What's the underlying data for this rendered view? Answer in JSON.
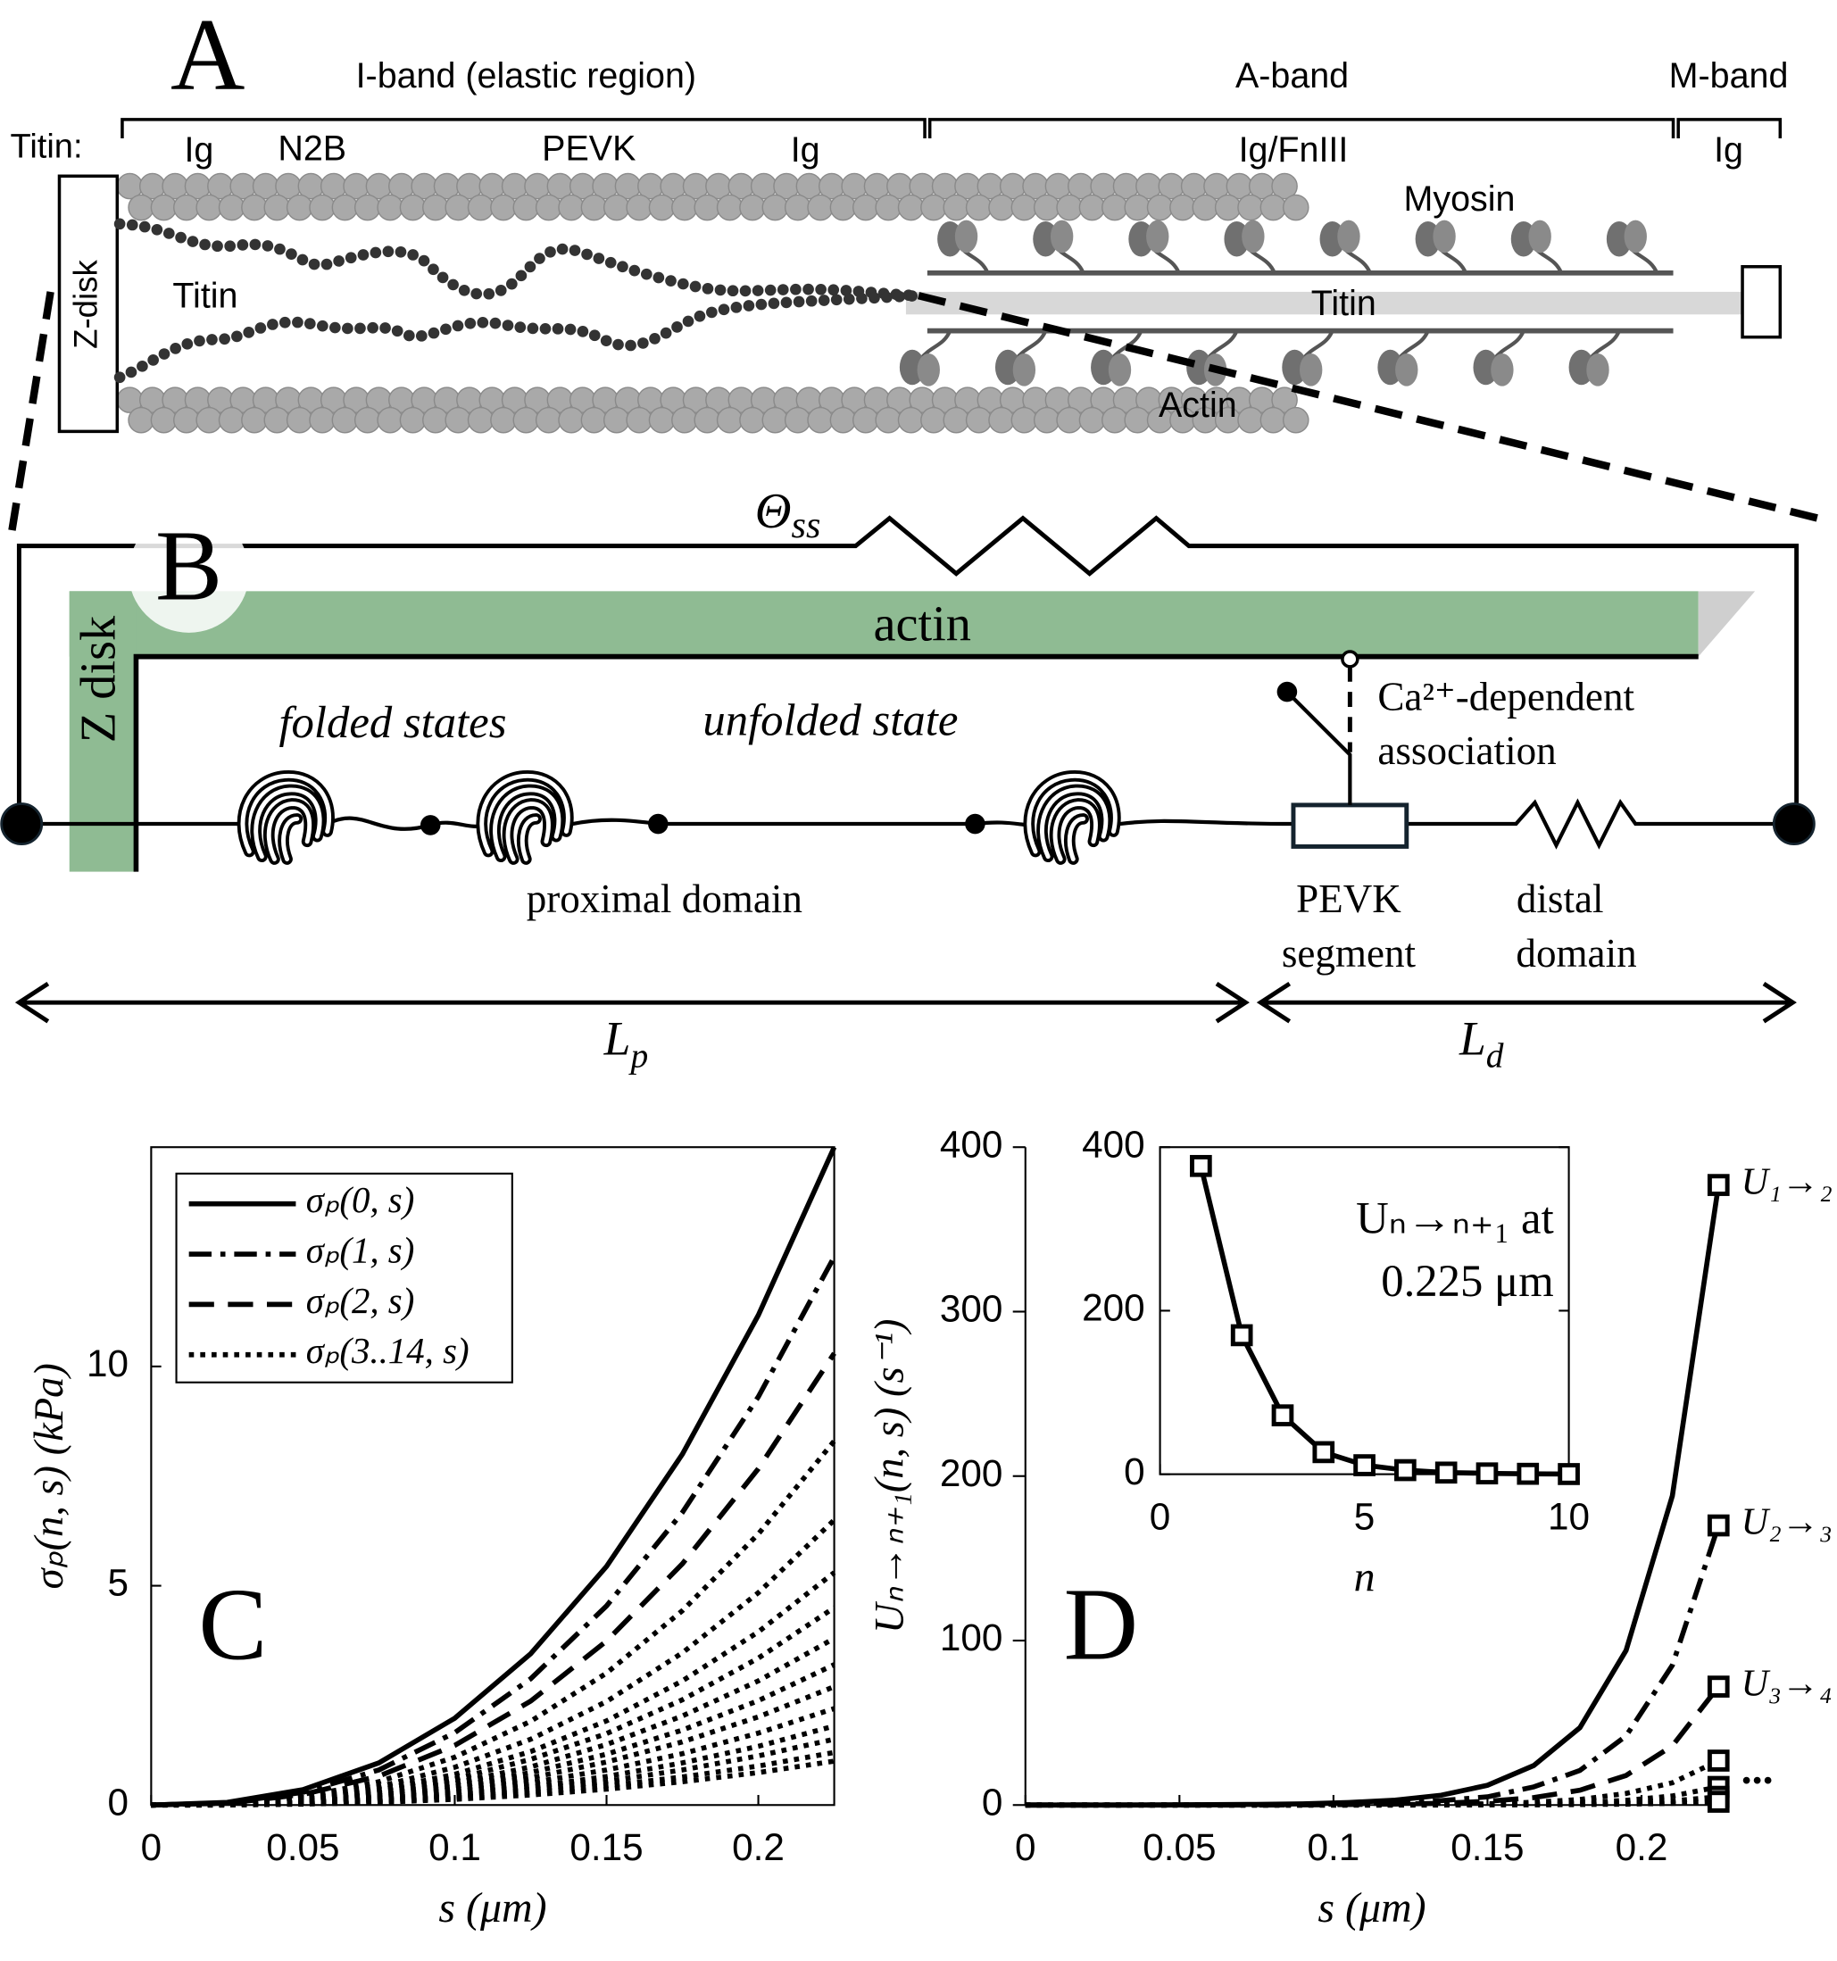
{
  "panel_a": {
    "label": "A",
    "bands": [
      "I-band (elastic region)",
      "A-band",
      "M-band"
    ],
    "titin_row": "Titin:",
    "segments": [
      "Ig",
      "N2B",
      "PEVK",
      "Ig",
      "Ig/FnIII",
      "Ig"
    ],
    "z_disk": "Z-disk",
    "titin": "Titin",
    "titin_a": "Titin",
    "myosin": "Myosin",
    "actin": "Actin"
  },
  "panel_b": {
    "label": "B",
    "theta": {
      "main": "Θ",
      "sub": "ss"
    },
    "actin": "actin",
    "z_disk": "Z disk",
    "folded": "folded states",
    "unfolded": "unfolded state",
    "proximal": "proximal domain",
    "pevk": [
      "PEVK",
      "segment"
    ],
    "distal": [
      "distal",
      "domain"
    ],
    "ca": [
      "Ca²⁺-dependent",
      "association"
    ],
    "lp": {
      "main": "L",
      "sub": "p"
    },
    "ld": {
      "main": "L",
      "sub": "d"
    }
  },
  "chart_data": [
    {
      "type": "line",
      "panel_label": "C",
      "xlabel": "s (μm)",
      "ylabel": "σₚ(n, s) (kPa)",
      "xlim": [
        0,
        0.225
      ],
      "ylim": [
        0,
        15
      ],
      "xticks": [
        0,
        0.05,
        0.1,
        0.15,
        0.2
      ],
      "yticks": [
        0,
        5,
        10
      ],
      "box": true,
      "legend": "upper left",
      "x": [
        0,
        0.025,
        0.05,
        0.075,
        0.1,
        0.125,
        0.15,
        0.175,
        0.2,
        0.225
      ],
      "series": [
        {
          "name": "σₚ(0, s)",
          "color": "#000000",
          "dash": "solid",
          "values": [
            0,
            0.06,
            0.35,
            0.96,
            1.98,
            3.45,
            5.44,
            8.0,
            11.17,
            15
          ]
        },
        {
          "name": "σₚ(1, s)",
          "color": "#000000",
          "dash": "dashdot",
          "values": [
            0,
            0.05,
            0.29,
            0.8,
            1.65,
            2.88,
            4.54,
            6.67,
            9.31,
            12.5
          ]
        },
        {
          "name": "σₚ(2, s)",
          "color": "#000000",
          "dash": "dashed",
          "values": [
            0,
            0.04,
            0.24,
            0.66,
            1.36,
            2.37,
            3.74,
            5.5,
            7.67,
            10.3
          ]
        },
        {
          "name": "σₚ(3..14, s)",
          "color": "#000000",
          "dash": "dotted",
          "curves": [
            [
              0,
              0.03,
              0.19,
              0.53,
              1.09,
              1.91,
              3.01,
              4.43,
              6.18,
              8.3
            ],
            [
              0,
              0.03,
              0.15,
              0.42,
              0.86,
              1.5,
              2.36,
              3.47,
              4.84,
              6.5
            ],
            [
              0,
              0.02,
              0.12,
              0.34,
              0.7,
              1.22,
              1.92,
              2.83,
              3.95,
              5.3
            ],
            [
              0,
              0.02,
              0.1,
              0.29,
              0.59,
              1.04,
              1.63,
              2.4,
              3.35,
              4.5
            ],
            [
              0,
              0.02,
              0.09,
              0.24,
              0.5,
              0.87,
              1.38,
              2.03,
              2.83,
              3.8
            ],
            [
              0,
              0.01,
              0.07,
              0.21,
              0.42,
              0.74,
              1.16,
              1.71,
              2.38,
              3.2
            ],
            [
              0,
              0.01,
              0.06,
              0.17,
              0.36,
              0.62,
              0.98,
              1.44,
              2.01,
              2.7
            ],
            [
              0,
              0.01,
              0.05,
              0.14,
              0.29,
              0.51,
              0.8,
              1.17,
              1.64,
              2.2
            ],
            [
              0,
              0.01,
              0.04,
              0.12,
              0.24,
              0.41,
              0.65,
              0.96,
              1.34,
              1.8
            ],
            [
              0,
              0.01,
              0.03,
              0.1,
              0.2,
              0.35,
              0.54,
              0.8,
              1.12,
              1.5
            ],
            [
              0,
              0,
              0.03,
              0.08,
              0.16,
              0.28,
              0.44,
              0.64,
              0.89,
              1.2
            ],
            [
              0,
              0,
              0.02,
              0.06,
              0.13,
              0.23,
              0.36,
              0.53,
              0.74,
              1.0
            ]
          ]
        }
      ]
    },
    {
      "type": "line",
      "panel_label": "D",
      "xlabel": "s (μm)",
      "ylabel": "Uₙ→ₙ₊₁(n, s) (s⁻¹)",
      "xlim": [
        0,
        0.225
      ],
      "ylim": [
        0,
        400
      ],
      "xticks": [
        0,
        0.05,
        0.1,
        0.15,
        0.2
      ],
      "yticks": [
        0,
        100,
        200,
        300,
        400
      ],
      "box": false,
      "marker": "square-end",
      "annotation": "...",
      "x": [
        0,
        0.015,
        0.03,
        0.045,
        0.06,
        0.075,
        0.09,
        0.105,
        0.12,
        0.135,
        0.15,
        0.165,
        0.18,
        0.195,
        0.21,
        0.225
      ],
      "series": [
        {
          "name": "U₁→₂",
          "color": "#000000",
          "dash": "solid",
          "values": [
            0,
            0,
            0,
            0.1,
            0.2,
            0.4,
            0.7,
            1.5,
            3,
            6,
            12,
            24,
            47,
            94,
            188,
            377
          ]
        },
        {
          "name": "U₂→₃",
          "color": "#000000",
          "dash": "dashdot",
          "values": [
            0,
            0,
            0,
            0,
            0.1,
            0.2,
            0.3,
            0.7,
            1.3,
            2.7,
            5,
            11,
            21,
            42,
            85,
            170
          ]
        },
        {
          "name": "U₃→₄",
          "color": "#000000",
          "dash": "dashed",
          "values": [
            0,
            0,
            0,
            0,
            0,
            0,
            0.1,
            0.3,
            0.6,
            1.1,
            2.3,
            4.5,
            9,
            18,
            36,
            72
          ]
        },
        {
          "color": "#000000",
          "dash": "dotted",
          "curves": [
            [
              0,
              0,
              0,
              0,
              0,
              0,
              0,
              0.1,
              0.2,
              0.4,
              0.8,
              1.7,
              3.4,
              7,
              13.5,
              27
            ],
            [
              0,
              0,
              0,
              0,
              0,
              0,
              0,
              0,
              0.1,
              0.2,
              0.3,
              0.7,
              1.4,
              2.8,
              5.5,
              11
            ],
            [
              0,
              0,
              0,
              0,
              0,
              0,
              0,
              0,
              0,
              0.1,
              0.2,
              0.3,
              0.6,
              1.3,
              2.5,
              5
            ],
            [
              0,
              0,
              0,
              0,
              0,
              0,
              0,
              0,
              0,
              0,
              0.1,
              0.1,
              0.3,
              0.5,
              1,
              2
            ]
          ]
        }
      ]
    },
    {
      "type": "line",
      "inset_of": "D",
      "xlabel": "n",
      "annotation": [
        "Uₙ→ₙ₊₁ at",
        "0.225 μm"
      ],
      "xlim": [
        0,
        10
      ],
      "ylim": [
        0,
        400
      ],
      "xticks": [
        0,
        5,
        10
      ],
      "yticks": [
        0,
        200,
        400
      ],
      "box": true,
      "marker": "square",
      "x": [
        1,
        2,
        3,
        4,
        5,
        6,
        7,
        8,
        9,
        10
      ],
      "series": [
        {
          "color": "#000000",
          "dash": "solid",
          "values": [
            377,
            170,
            72,
            27,
            11,
            5,
            2,
            1,
            0.5,
            0.2
          ]
        }
      ]
    }
  ]
}
